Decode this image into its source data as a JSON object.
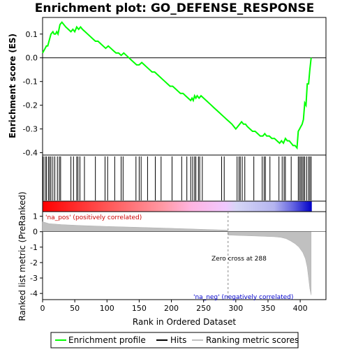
{
  "chart_data": {
    "type": "line",
    "title": "Enrichment plot: GO_DEFENSE_RESPONSE",
    "top_panel": {
      "ylabel": "Enrichment score (ES)",
      "ylim": [
        -0.41,
        0.17
      ],
      "yticks": [
        0.1,
        0.0,
        -0.1,
        -0.2,
        -0.3,
        -0.4
      ],
      "ytick_labels": [
        "0.1",
        "0.0",
        "-0.1",
        "-0.2",
        "-0.3",
        "-0.4"
      ],
      "series": [
        {
          "name": "Enrichment profile",
          "color": "#00ff00",
          "x": [
            0,
            2,
            4,
            6,
            8,
            10,
            13,
            16,
            18,
            20,
            22,
            24,
            27,
            30,
            33,
            36,
            40,
            44,
            47,
            50,
            53,
            56,
            59,
            62,
            66,
            70,
            74,
            78,
            82,
            86,
            90,
            94,
            98,
            102,
            106,
            110,
            114,
            118,
            122,
            126,
            130,
            134,
            138,
            142,
            146,
            150,
            154,
            158,
            162,
            166,
            170,
            174,
            178,
            182,
            186,
            190,
            194,
            198,
            202,
            206,
            210,
            214,
            218,
            222,
            226,
            230,
            232,
            234,
            236,
            238,
            240,
            243,
            246,
            250,
            254,
            258,
            262,
            266,
            270,
            274,
            278,
            282,
            286,
            290,
            294,
            297,
            300,
            303,
            306,
            309,
            312,
            315,
            318,
            322,
            326,
            330,
            334,
            338,
            342,
            345,
            348,
            352,
            356,
            360,
            364,
            368,
            371,
            374,
            377,
            380,
            383,
            386,
            389,
            392,
            395,
            397,
            399,
            401,
            403,
            405,
            407,
            409,
            411,
            413,
            415,
            417
          ],
          "y": [
            0.02,
            0.03,
            0.04,
            0.05,
            0.05,
            0.07,
            0.1,
            0.11,
            0.1,
            0.1,
            0.11,
            0.1,
            0.14,
            0.15,
            0.14,
            0.13,
            0.12,
            0.11,
            0.12,
            0.11,
            0.13,
            0.12,
            0.13,
            0.12,
            0.11,
            0.1,
            0.09,
            0.08,
            0.07,
            0.07,
            0.06,
            0.05,
            0.04,
            0.05,
            0.04,
            0.03,
            0.02,
            0.02,
            0.01,
            0.02,
            0.01,
            0.0,
            -0.01,
            -0.02,
            -0.03,
            -0.03,
            -0.02,
            -0.03,
            -0.04,
            -0.05,
            -0.06,
            -0.06,
            -0.07,
            -0.08,
            -0.09,
            -0.1,
            -0.11,
            -0.12,
            -0.12,
            -0.13,
            -0.14,
            -0.15,
            -0.15,
            -0.16,
            -0.17,
            -0.18,
            -0.17,
            -0.18,
            -0.16,
            -0.17,
            -0.16,
            -0.17,
            -0.16,
            -0.17,
            -0.18,
            -0.19,
            -0.2,
            -0.21,
            -0.22,
            -0.23,
            -0.24,
            -0.25,
            -0.26,
            -0.27,
            -0.28,
            -0.29,
            -0.3,
            -0.29,
            -0.28,
            -0.27,
            -0.28,
            -0.28,
            -0.29,
            -0.3,
            -0.31,
            -0.31,
            -0.32,
            -0.33,
            -0.33,
            -0.32,
            -0.33,
            -0.33,
            -0.34,
            -0.34,
            -0.35,
            -0.36,
            -0.35,
            -0.36,
            -0.34,
            -0.35,
            -0.35,
            -0.36,
            -0.37,
            -0.37,
            -0.38,
            -0.31,
            -0.3,
            -0.29,
            -0.28,
            -0.26,
            -0.19,
            -0.2,
            -0.11,
            -0.11,
            -0.05,
            0.0
          ]
        }
      ]
    },
    "hits": {
      "name": "Hits",
      "positions": [
        1,
        4,
        6,
        9,
        11,
        13,
        16,
        19,
        23,
        26,
        28,
        44,
        48,
        53,
        55,
        58,
        65,
        82,
        97,
        101,
        112,
        122,
        125,
        145,
        150,
        153,
        163,
        175,
        184,
        201,
        216,
        224,
        230,
        233,
        236,
        238,
        242,
        244,
        248,
        278,
        282,
        302,
        305,
        307,
        310,
        314,
        328,
        341,
        344,
        346,
        353,
        367,
        372,
        375,
        377,
        386,
        397,
        399,
        401,
        403,
        405,
        407,
        410,
        413,
        415,
        417
      ]
    },
    "bottom_panel": {
      "xlabel": "Rank in Ordered Dataset",
      "ylabel": "Ranked list metric (PreRanked)",
      "ylim": [
        -4.4,
        1.3
      ],
      "yticks": [
        1,
        0,
        -1,
        -2,
        -3,
        -4
      ],
      "ytick_labels": [
        "1",
        "0",
        "-1",
        "-2",
        "-3",
        "-4"
      ],
      "metric_profile": {
        "name": "Ranking metric scores",
        "x": [
          0,
          10,
          30,
          60,
          100,
          150,
          200,
          250,
          287,
          288,
          300,
          330,
          360,
          370,
          378,
          385,
          392,
          398,
          404,
          408,
          411,
          413,
          415,
          417
        ],
        "y": [
          0.65,
          0.52,
          0.46,
          0.4,
          0.34,
          0.28,
          0.22,
          0.15,
          0.1,
          -0.22,
          -0.24,
          -0.28,
          -0.33,
          -0.37,
          -0.45,
          -0.6,
          -0.78,
          -1.0,
          -1.35,
          -1.75,
          -2.3,
          -3.0,
          -3.7,
          -4.1
        ]
      },
      "annotations": [
        {
          "text": "'na_pos' (positively correlated)",
          "color": "#cc0000"
        },
        {
          "text": "Zero cross at 288",
          "color": "#000000"
        },
        {
          "text": "'na_neg' (negatively correlated)",
          "color": "#0000cc"
        }
      ],
      "zero_cross": 288
    },
    "xlim": [
      0,
      440
    ],
    "xticks": [
      0,
      50,
      100,
      150,
      200,
      250,
      300,
      350,
      400
    ],
    "xtick_labels": [
      "0",
      "50",
      "100",
      "150",
      "200",
      "250",
      "300",
      "350",
      "400"
    ],
    "n_ranks": 418,
    "legend": {
      "placement": "bottom",
      "entries": [
        {
          "label": "Enrichment profile",
          "color": "#00ff00"
        },
        {
          "label": "Hits",
          "color": "#000000"
        },
        {
          "label": "Ranking metric scores",
          "color": "#c0c0c0"
        }
      ]
    }
  }
}
